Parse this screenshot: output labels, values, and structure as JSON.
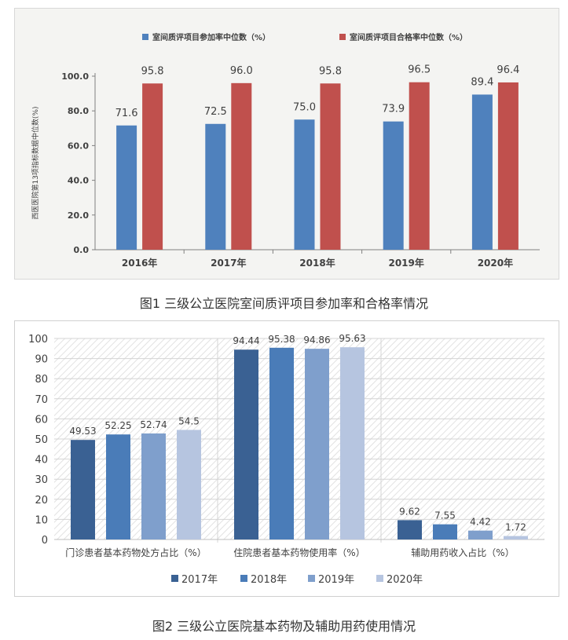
{
  "captions": {
    "figure1": "图1  三级公立医院室间质评项目参加率和合格率情况",
    "figure2": "图2  三级公立医院基本药物及辅助用药使用情况"
  },
  "colors": {
    "c1_blue": "#4f81bd",
    "c1_red": "#c0504d",
    "c2_2017": "#3a6193",
    "c2_2018": "#4a7cb8",
    "c2_2019": "#7f9fcc",
    "c2_2020": "#b6c5e0"
  },
  "chart_data": [
    {
      "type": "bar",
      "title": "",
      "ylabel": "西医医院第13项指标数据中位数(%)",
      "xlabel": "",
      "ylim": [
        0,
        100
      ],
      "yticks": [
        "0.0",
        "20.0",
        "40.0",
        "60.0",
        "80.0",
        "100.0"
      ],
      "categories": [
        "2016年",
        "2017年",
        "2018年",
        "2019年",
        "2020年"
      ],
      "series": [
        {
          "name": "室间质评项目参加率中位数（%）",
          "values": [
            71.6,
            72.5,
            75.0,
            73.9,
            89.4
          ],
          "labels": [
            "71.6",
            "72.5",
            "75.0",
            "73.9",
            "89.4"
          ]
        },
        {
          "name": "室间质评项目合格率中位数（%）",
          "values": [
            95.8,
            96.0,
            95.8,
            96.5,
            96.4
          ],
          "labels": [
            "95.8",
            "96.0",
            "95.8",
            "96.5",
            "96.4"
          ]
        }
      ],
      "legend": "top",
      "grid": false
    },
    {
      "type": "bar",
      "title": "",
      "xlabel": "",
      "ylabel": "",
      "ylim": [
        0,
        100
      ],
      "yticks": [
        "0",
        "10",
        "20",
        "30",
        "40",
        "50",
        "60",
        "70",
        "80",
        "90",
        "100"
      ],
      "categories": [
        "门诊患者基本药物处方占比（%）",
        "住院患者基本药物使用率（%）",
        "辅助用药收入占比（%）"
      ],
      "series": [
        {
          "name": "2017年",
          "values": [
            49.53,
            94.44,
            9.62
          ],
          "labels": [
            "49.53",
            "94.44",
            "9.62"
          ]
        },
        {
          "name": "2018年",
          "values": [
            52.25,
            95.38,
            7.55
          ],
          "labels": [
            "52.25",
            "95.38",
            "7.55"
          ]
        },
        {
          "name": "2019年",
          "values": [
            52.74,
            94.86,
            4.42
          ],
          "labels": [
            "52.74",
            "94.86",
            "4.42"
          ]
        },
        {
          "name": "2020年",
          "values": [
            54.5,
            95.63,
            1.72
          ],
          "labels": [
            "54.5",
            "95.63",
            "1.72"
          ]
        }
      ],
      "legend": "bottom",
      "grid": true
    }
  ]
}
